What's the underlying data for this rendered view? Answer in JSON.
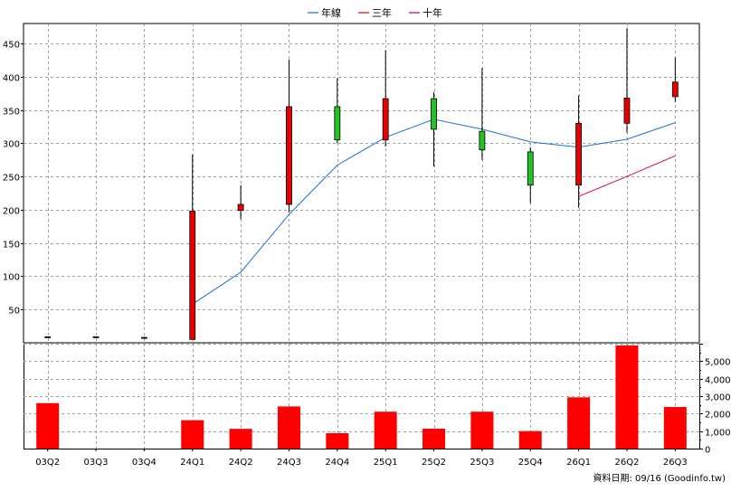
{
  "legend": [
    {
      "label": "年線",
      "color": "#1f6fd6"
    },
    {
      "label": "三年",
      "color": "#e60000"
    },
    {
      "label": "十年",
      "color": "#c0007a"
    }
  ],
  "source_note": "資料日期: 09/16 (Goodinfo.tw)",
  "colors": {
    "up": "#e60000",
    "down": "#22c322",
    "year_line": "#1f6fd6",
    "three_year_line": "#e0004d",
    "volume": "#ff0000",
    "grid": "#a0a0a0"
  },
  "chart_data": [
    {
      "type": "candlestick",
      "categories": [
        "03Q2",
        "03Q3",
        "03Q4",
        "24Q1",
        "24Q2",
        "24Q3",
        "24Q4",
        "25Q1",
        "25Q2",
        "25Q3",
        "25Q4",
        "26Q1",
        "26Q2",
        "26Q3"
      ],
      "ohlc": [
        {
          "open": 9,
          "high": 9,
          "low": 9,
          "close": 9
        },
        {
          "open": 9,
          "high": 9,
          "low": 9,
          "close": 9
        },
        {
          "open": 8,
          "high": 9,
          "low": 6,
          "close": 8
        },
        {
          "open": 5,
          "high": 283,
          "low": 5,
          "close": 198
        },
        {
          "open": 199,
          "high": 237,
          "low": 186,
          "close": 208
        },
        {
          "open": 208,
          "high": 426,
          "low": 196,
          "close": 355
        },
        {
          "open": 355,
          "high": 398,
          "low": 300,
          "close": 305
        },
        {
          "open": 305,
          "high": 440,
          "low": 295,
          "close": 367
        },
        {
          "open": 367,
          "high": 377,
          "low": 265,
          "close": 321
        },
        {
          "open": 318,
          "high": 413,
          "low": 275,
          "close": 290
        },
        {
          "open": 287,
          "high": 294,
          "low": 210,
          "close": 237
        },
        {
          "open": 237,
          "high": 372,
          "low": 203,
          "close": 330
        },
        {
          "open": 330,
          "high": 473,
          "low": 316,
          "close": 368
        },
        {
          "open": 370,
          "high": 429,
          "low": 362,
          "close": 392
        }
      ],
      "series": [
        {
          "name": "年線",
          "values": [
            null,
            null,
            null,
            58,
            106,
            193,
            267,
            309,
            336,
            321,
            302,
            294,
            306,
            331
          ]
        },
        {
          "name": "三年",
          "values": [
            null,
            null,
            null,
            null,
            null,
            null,
            null,
            null,
            null,
            null,
            null,
            220,
            250,
            281
          ]
        }
      ],
      "ylim": [
        0,
        480
      ],
      "yticks": [
        50,
        100,
        150,
        200,
        250,
        300,
        350,
        400,
        450
      ],
      "grid": true,
      "legend_position": "top-center"
    },
    {
      "type": "bar",
      "categories": [
        "03Q2",
        "03Q3",
        "03Q4",
        "24Q1",
        "24Q2",
        "24Q3",
        "24Q4",
        "25Q1",
        "25Q2",
        "25Q3",
        "25Q4",
        "26Q1",
        "26Q2",
        "26Q3"
      ],
      "values": [
        2600,
        0,
        0,
        1620,
        1130,
        2410,
        880,
        2110,
        1140,
        2110,
        1000,
        2930,
        5900,
        2380
      ],
      "ylim": [
        0,
        6000
      ],
      "yticks": [
        0,
        1000,
        2000,
        3000,
        4000,
        5000
      ],
      "ytick_labels": [
        "0",
        "1,000",
        "2,000",
        "3,000",
        "4,000",
        "5,000"
      ],
      "grid": true
    }
  ]
}
